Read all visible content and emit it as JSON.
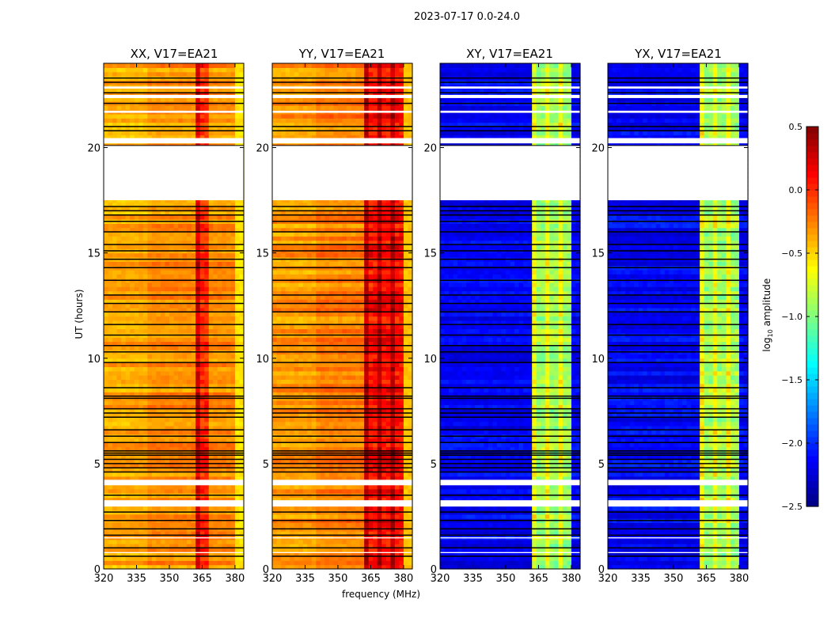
{
  "chart_data": {
    "type": "heatmap",
    "title": "2023-07-17 0.0-24.0",
    "xlabel": "frequency (MHz)",
    "ylabel": "UT (hours)",
    "xlim": [
      320,
      384
    ],
    "ylim": [
      0,
      24
    ],
    "xticks": [
      "320",
      "335",
      "350",
      "365",
      "380"
    ],
    "yticks": [
      "0",
      "5",
      "10",
      "15",
      "20"
    ],
    "panels": [
      {
        "title": "XX, V17=EA21",
        "base": -0.35,
        "band": [
          362,
          368
        ],
        "band_level": 0.0,
        "high_edge_level": -0.6
      },
      {
        "title": "YY, V17=EA21",
        "base": -0.3,
        "band": [
          362,
          381
        ],
        "band_level": 0.1,
        "high_edge_level": -0.5
      },
      {
        "title": "XY, V17=EA21",
        "base": -2.2,
        "band": [
          363,
          380
        ],
        "band_level": -0.9,
        "high_edge_level": -2.2
      },
      {
        "title": "YX, V17=EA21",
        "base": -2.2,
        "band": [
          363,
          380
        ],
        "band_level": -0.9,
        "high_edge_level": -2.2
      }
    ],
    "flagged_gaps_hours": [
      [
        17.5,
        20.1
      ],
      [
        20.2,
        20.45
      ],
      [
        21.65,
        21.75
      ],
      [
        22.35,
        22.5
      ],
      [
        22.8,
        22.9
      ],
      [
        3.97,
        4.23
      ],
      [
        2.96,
        3.26
      ],
      [
        1.45,
        1.5
      ],
      [
        0.75,
        0.8
      ]
    ],
    "flagged_lines_hours": [
      0.6,
      1.0,
      1.6,
      1.9,
      2.3,
      2.7,
      3.5,
      4.6,
      4.8,
      5.0,
      5.2,
      5.4,
      5.5,
      5.6,
      6.0,
      6.3,
      6.6,
      7.2,
      7.4,
      7.6,
      8.1,
      8.2,
      8.6,
      9.8,
      10.3,
      10.6,
      11.1,
      11.6,
      12.2,
      12.6,
      13.0,
      13.7,
      14.3,
      14.7,
      15.1,
      15.4,
      16.0,
      16.5,
      16.8,
      17.0,
      17.2,
      20.8,
      21.0,
      22.1,
      22.6,
      23.1,
      23.3
    ],
    "colorbar": {
      "label_prefix": "log",
      "label_sub": "10",
      "label_suffix": " amplitude",
      "ticks": [
        "0.5",
        "0.0",
        "−0.5",
        "−1.0",
        "−1.5",
        "−2.0",
        "−2.5"
      ],
      "range": [
        -2.5,
        0.5
      ],
      "colormap": "jet"
    }
  }
}
